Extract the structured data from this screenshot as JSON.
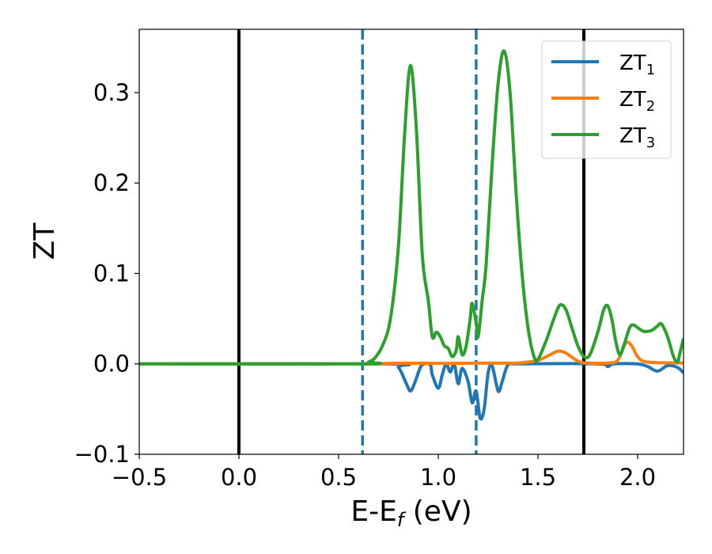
{
  "chart_data": {
    "type": "line",
    "xlabel_main": "E-E",
    "xlabel_sub": "f",
    "xlabel_unit": " (eV)",
    "ylabel": "ZT",
    "xlim": [
      -0.5,
      2.23
    ],
    "ylim": [
      -0.1,
      0.37
    ],
    "xticks": [
      -0.5,
      0.0,
      0.5,
      1.0,
      1.5,
      2.0
    ],
    "xtick_labels": [
      "−0.5",
      "0.0",
      "0.5",
      "1.0",
      "1.5",
      "2.0"
    ],
    "yticks": [
      -0.1,
      0.0,
      0.1,
      0.2,
      0.3
    ],
    "ytick_labels": [
      "−0.1",
      "0.0",
      "0.1",
      "0.2",
      "0.3"
    ],
    "grid": false,
    "legend_position": "top-right",
    "vlines": [
      {
        "x": 0.0,
        "style": "solid",
        "color": "#000000"
      },
      {
        "x": 1.73,
        "style": "solid",
        "color": "#000000"
      },
      {
        "x": 0.62,
        "style": "dashed",
        "color": "#1f77b4"
      },
      {
        "x": 1.19,
        "style": "dashed",
        "color": "#1f77b4"
      }
    ],
    "series": [
      {
        "name_base": "ZT",
        "name_sub": "1",
        "color": "#1f77b4",
        "points": [
          [
            -0.5,
            0
          ],
          [
            0.75,
            0
          ],
          [
            0.8,
            -0.004
          ],
          [
            0.84,
            -0.022
          ],
          [
            0.86,
            -0.03
          ],
          [
            0.88,
            -0.022
          ],
          [
            0.91,
            -0.004
          ],
          [
            0.93,
            0
          ],
          [
            0.96,
            -0.001
          ],
          [
            0.97,
            -0.012
          ],
          [
            1.0,
            -0.027
          ],
          [
            1.02,
            -0.012
          ],
          [
            1.04,
            0
          ],
          [
            1.06,
            -0.009
          ],
          [
            1.08,
            0
          ],
          [
            1.1,
            -0.022
          ],
          [
            1.12,
            -0.005
          ],
          [
            1.15,
            -0.02
          ],
          [
            1.17,
            -0.043
          ],
          [
            1.19,
            -0.03
          ],
          [
            1.21,
            -0.06
          ],
          [
            1.23,
            -0.05
          ],
          [
            1.25,
            -0.01
          ],
          [
            1.27,
            -0.002
          ],
          [
            1.3,
            -0.03
          ],
          [
            1.32,
            -0.02
          ],
          [
            1.35,
            -0.001
          ],
          [
            1.4,
            0
          ],
          [
            1.8,
            0
          ],
          [
            1.85,
            -0.003
          ],
          [
            1.88,
            0
          ],
          [
            2.0,
            0
          ],
          [
            2.05,
            -0.003
          ],
          [
            2.1,
            -0.008
          ],
          [
            2.15,
            -0.002
          ],
          [
            2.2,
            -0.004
          ],
          [
            2.23,
            -0.01
          ]
        ]
      },
      {
        "name_base": "ZT",
        "name_sub": "2",
        "color": "#ff7f0e",
        "points": [
          [
            -0.5,
            0
          ],
          [
            0.62,
            0
          ],
          [
            0.7,
            0.0003
          ],
          [
            0.85,
            0.0008
          ],
          [
            1.0,
            0.0005
          ],
          [
            1.2,
            0.0008
          ],
          [
            1.4,
            0.001
          ],
          [
            1.5,
            0.004
          ],
          [
            1.56,
            0.01
          ],
          [
            1.6,
            0.014
          ],
          [
            1.64,
            0.012
          ],
          [
            1.7,
            0.003
          ],
          [
            1.75,
            0.001
          ],
          [
            1.85,
            0.001
          ],
          [
            1.9,
            0.004
          ],
          [
            1.94,
            0.023
          ],
          [
            1.97,
            0.02
          ],
          [
            2.0,
            0.008
          ],
          [
            2.05,
            0.002
          ],
          [
            2.23,
            0.001
          ]
        ]
      },
      {
        "name_base": "ZT",
        "name_sub": "3",
        "color": "#2ca02c",
        "points": [
          [
            -0.5,
            0
          ],
          [
            0.62,
            0
          ],
          [
            0.65,
            0.002
          ],
          [
            0.68,
            0.006
          ],
          [
            0.72,
            0.02
          ],
          [
            0.76,
            0.05
          ],
          [
            0.8,
            0.13
          ],
          [
            0.83,
            0.25
          ],
          [
            0.86,
            0.33
          ],
          [
            0.89,
            0.26
          ],
          [
            0.92,
            0.12
          ],
          [
            0.95,
            0.07
          ],
          [
            0.97,
            0.03
          ],
          [
            0.99,
            0.035
          ],
          [
            1.01,
            0.03
          ],
          [
            1.03,
            0.02
          ],
          [
            1.05,
            0.017
          ],
          [
            1.07,
            0.008
          ],
          [
            1.09,
            0.015
          ],
          [
            1.1,
            0.03
          ],
          [
            1.12,
            0.01
          ],
          [
            1.14,
            0.02
          ],
          [
            1.16,
            0.05
          ],
          [
            1.17,
            0.067
          ],
          [
            1.19,
            0.045
          ],
          [
            1.2,
            0.03
          ],
          [
            1.22,
            0.07
          ],
          [
            1.24,
            0.11
          ],
          [
            1.27,
            0.22
          ],
          [
            1.3,
            0.31
          ],
          [
            1.33,
            0.346
          ],
          [
            1.36,
            0.3
          ],
          [
            1.39,
            0.19
          ],
          [
            1.42,
            0.1
          ],
          [
            1.45,
            0.04
          ],
          [
            1.48,
            0.008
          ],
          [
            1.5,
            0.005
          ],
          [
            1.54,
            0.025
          ],
          [
            1.58,
            0.05
          ],
          [
            1.61,
            0.065
          ],
          [
            1.64,
            0.06
          ],
          [
            1.67,
            0.04
          ],
          [
            1.7,
            0.02
          ],
          [
            1.73,
            0.008
          ],
          [
            1.76,
            0.01
          ],
          [
            1.8,
            0.035
          ],
          [
            1.83,
            0.06
          ],
          [
            1.85,
            0.064
          ],
          [
            1.87,
            0.05
          ],
          [
            1.89,
            0.025
          ],
          [
            1.91,
            0.01
          ],
          [
            1.93,
            0.02
          ],
          [
            1.96,
            0.04
          ],
          [
            1.98,
            0.043
          ],
          [
            2.0,
            0.04
          ],
          [
            2.03,
            0.036
          ],
          [
            2.07,
            0.037
          ],
          [
            2.1,
            0.042
          ],
          [
            2.12,
            0.044
          ],
          [
            2.15,
            0.03
          ],
          [
            2.18,
            0.008
          ],
          [
            2.2,
            0.002
          ],
          [
            2.21,
            0.01
          ],
          [
            2.23,
            0.028
          ]
        ]
      }
    ]
  }
}
